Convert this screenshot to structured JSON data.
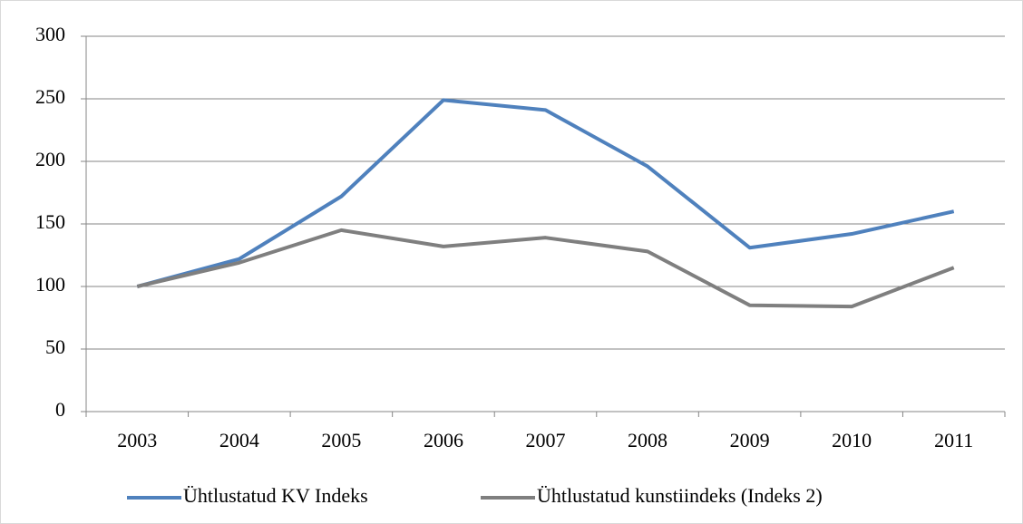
{
  "chart_data": {
    "type": "line",
    "categories": [
      "2003",
      "2004",
      "2005",
      "2006",
      "2007",
      "2008",
      "2009",
      "2010",
      "2011"
    ],
    "series": [
      {
        "name": "Ühtlustatud KV Indeks",
        "color": "#4f81bd",
        "values": [
          100,
          122,
          172,
          249,
          241,
          196,
          131,
          142,
          160
        ]
      },
      {
        "name": "Ühtlustatud kunstiindeks (Indeks 2)",
        "color": "#7f7f7f",
        "values": [
          100,
          119,
          145,
          132,
          139,
          128,
          85,
          84,
          115
        ]
      }
    ],
    "ylim": [
      0,
      300
    ],
    "yticks": [
      0,
      50,
      100,
      150,
      200,
      250,
      300
    ],
    "grid": true,
    "legend": "bottom"
  }
}
